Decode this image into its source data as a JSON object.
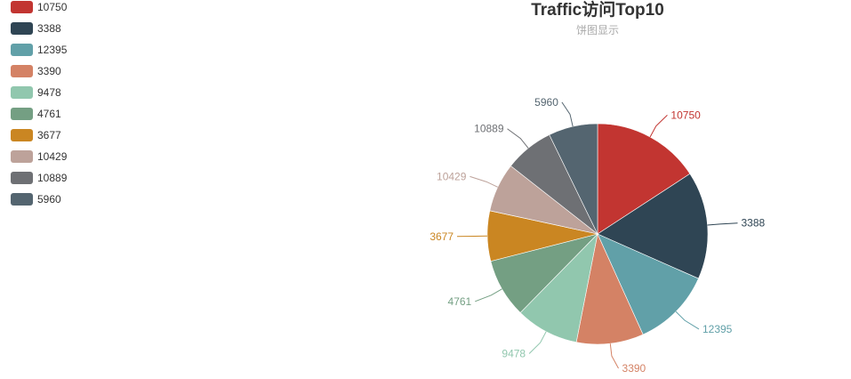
{
  "chart_data": {
    "type": "pie",
    "title": "Traffic访问Top10",
    "subtitle": "饼图显示",
    "labels": [
      "10750",
      "3388",
      "12395",
      "3390",
      "9478",
      "4761",
      "3677",
      "10429",
      "10889",
      "5960"
    ],
    "values": [
      10750,
      10750,
      7900,
      6700,
      6300,
      5900,
      5000,
      4900,
      4900,
      4900
    ],
    "colors": [
      "#c23531",
      "#2f4554",
      "#61a0a8",
      "#d48265",
      "#91c7ae",
      "#749f83",
      "#ca8622",
      "#bda29a",
      "#6e7074",
      "#546570"
    ],
    "legend_position": "top-left"
  }
}
